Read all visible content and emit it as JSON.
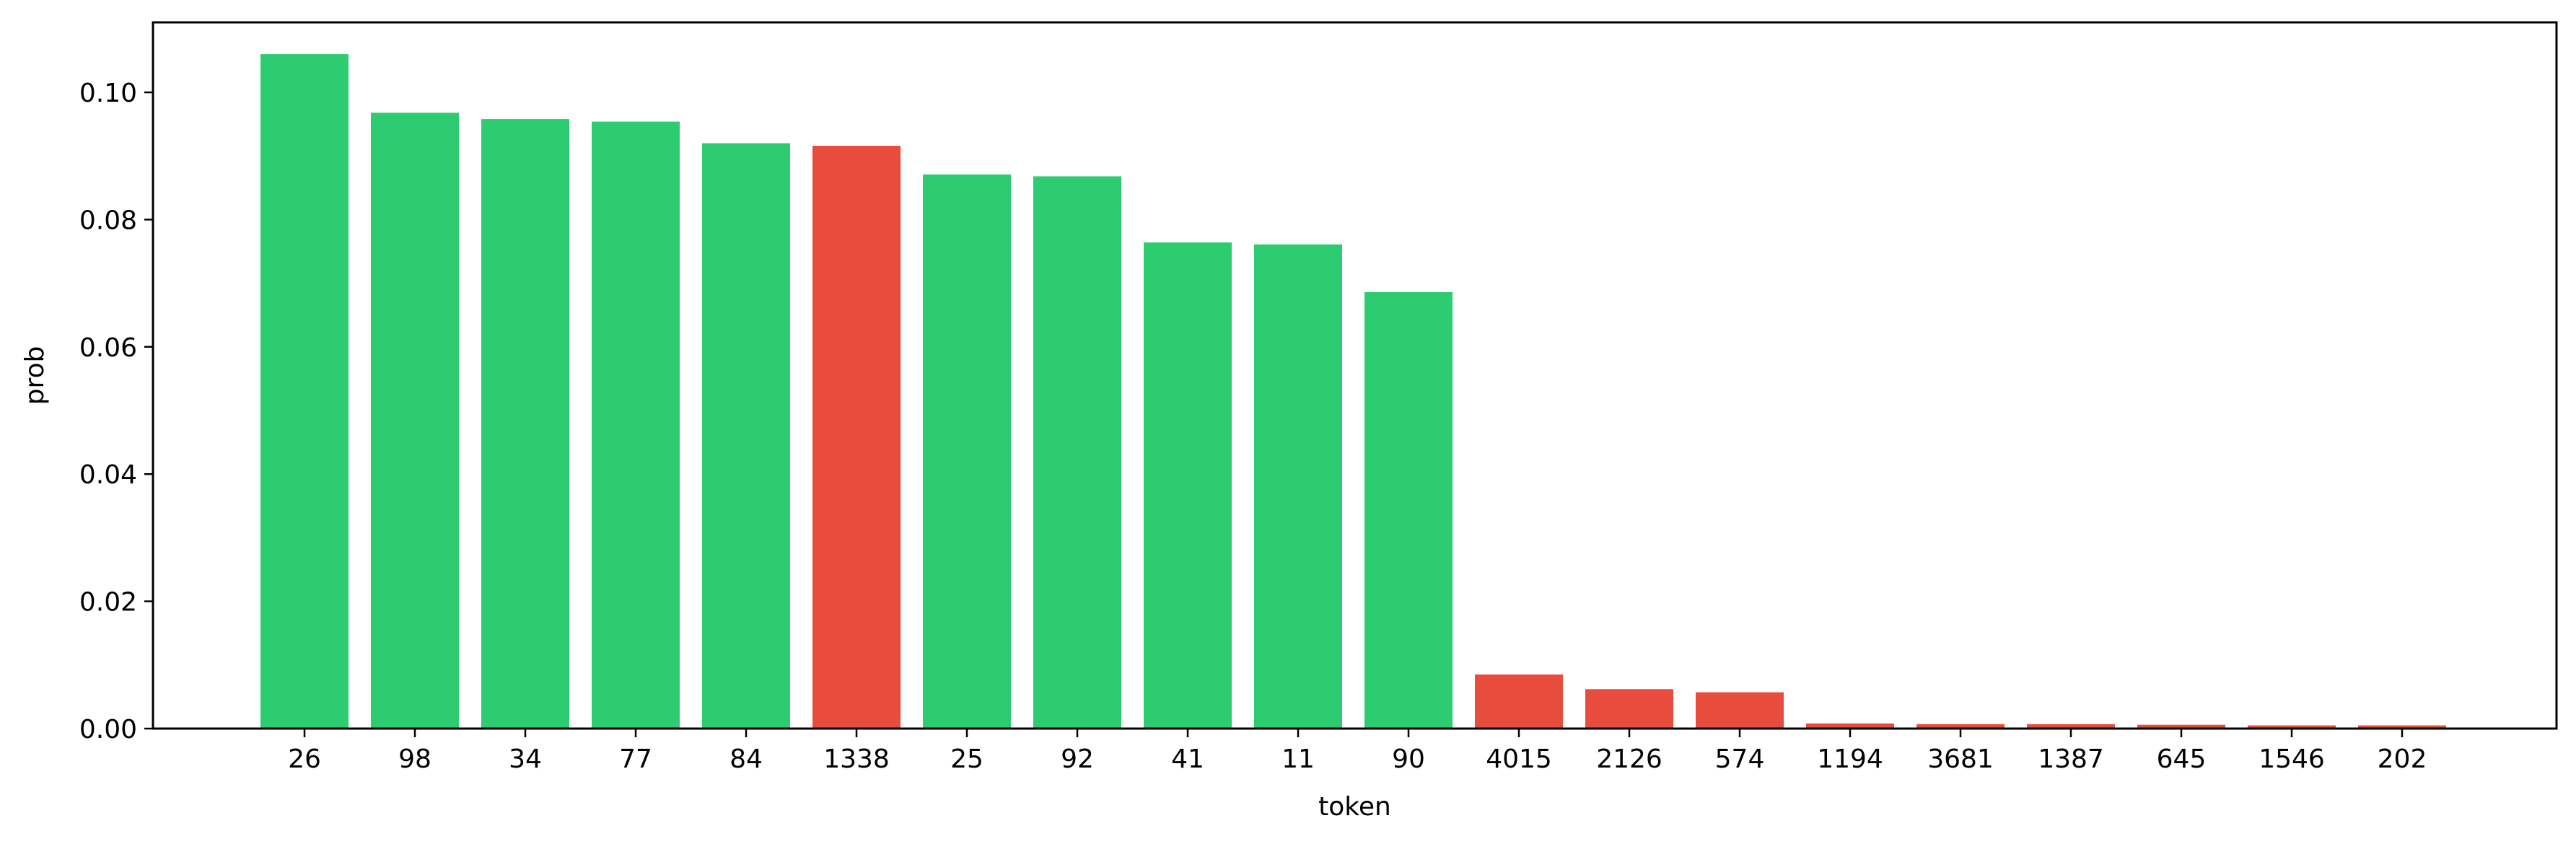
{
  "chart_data": {
    "type": "bar",
    "xlabel": "token",
    "ylabel": "prob",
    "ylim": [
      0,
      0.111
    ],
    "yticks": [
      0.0,
      0.02,
      0.04,
      0.06,
      0.08,
      0.1
    ],
    "ytick_labels": [
      "0.00",
      "0.02",
      "0.04",
      "0.06",
      "0.08",
      "0.10"
    ],
    "grid": false,
    "categories": [
      "26",
      "98",
      "34",
      "77",
      "84",
      "1338",
      "25",
      "92",
      "41",
      "11",
      "90",
      "4015",
      "2126",
      "574",
      "1194",
      "3681",
      "1387",
      "645",
      "1546",
      "202"
    ],
    "values": [
      0.106,
      0.0968,
      0.0958,
      0.0954,
      0.092,
      0.0916,
      0.0871,
      0.0868,
      0.0764,
      0.0761,
      0.0686,
      0.0085,
      0.0062,
      0.0057,
      0.0008,
      0.0007,
      0.0007,
      0.0006,
      0.0005,
      0.0005
    ],
    "bar_colors": [
      "#2ecc71",
      "#2ecc71",
      "#2ecc71",
      "#2ecc71",
      "#2ecc71",
      "#e74c3c",
      "#2ecc71",
      "#2ecc71",
      "#2ecc71",
      "#2ecc71",
      "#2ecc71",
      "#e74c3c",
      "#e74c3c",
      "#e74c3c",
      "#e74c3c",
      "#e74c3c",
      "#e74c3c",
      "#e74c3c",
      "#e74c3c",
      "#e74c3c"
    ]
  }
}
